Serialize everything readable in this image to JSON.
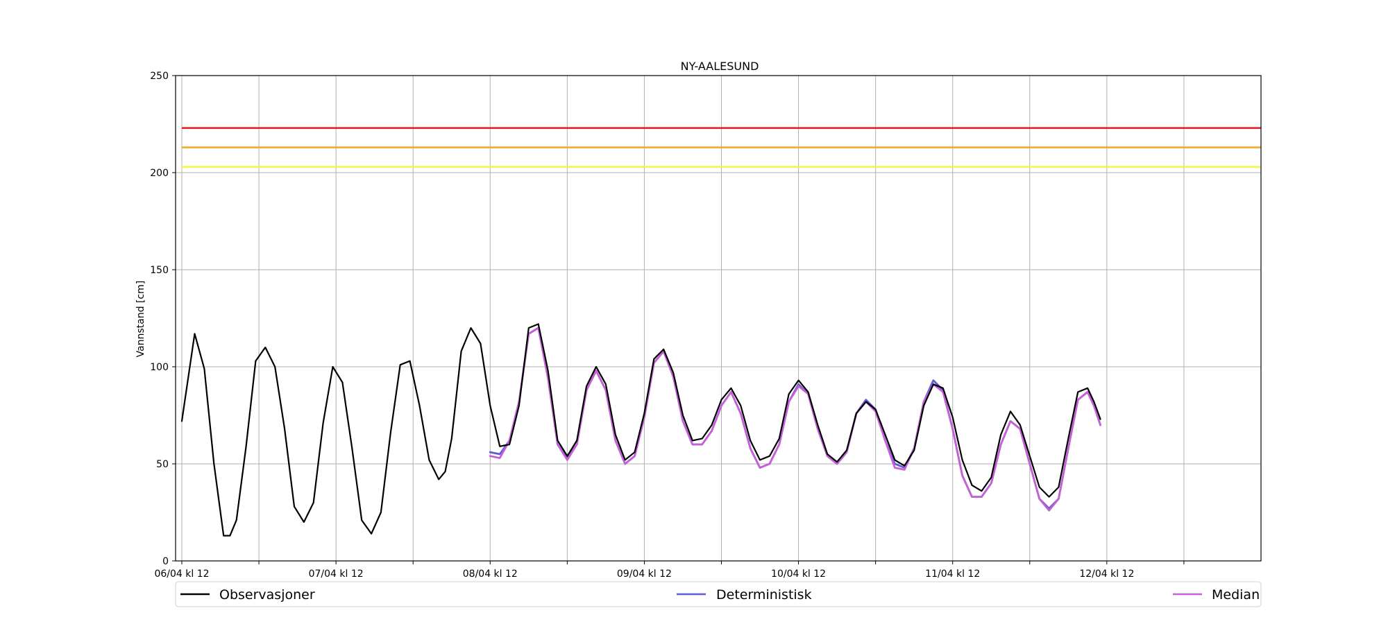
{
  "chart_data": {
    "type": "line",
    "title": "NY-AALESUND",
    "ylabel": "Vannstand [cm]",
    "xlabel": "",
    "ylim": [
      0,
      250
    ],
    "yticks": [
      0,
      50,
      100,
      150,
      200,
      250
    ],
    "x_unit": "hours since 06/04 00:00",
    "xlim": [
      12,
      180
    ],
    "xticks": [
      12,
      24,
      36,
      48,
      60,
      72,
      84,
      96,
      108,
      120,
      132,
      144,
      156,
      168
    ],
    "xtick_labels": [
      "06/04 kl 12",
      "",
      "07/04 kl 12",
      "",
      "08/04 kl 12",
      "",
      "09/04 kl 12",
      "",
      "10/04 kl 12",
      "",
      "11/04 kl 12",
      "",
      "12/04 kl 12",
      ""
    ],
    "grid": true,
    "thresholds": [
      {
        "value": 223,
        "color": "#e41a1c"
      },
      {
        "value": 213,
        "color": "#f5a623"
      },
      {
        "value": 203,
        "color": "#f5f542"
      }
    ],
    "series": [
      {
        "name": "Observasjoner",
        "color": "#000000",
        "points": [
          [
            12,
            72
          ],
          [
            14,
            117
          ],
          [
            15.5,
            99
          ],
          [
            17,
            50
          ],
          [
            18.5,
            13
          ],
          [
            19.5,
            13
          ],
          [
            20.5,
            21
          ],
          [
            22,
            59
          ],
          [
            23.5,
            103
          ],
          [
            25,
            110
          ],
          [
            26.5,
            100
          ],
          [
            28,
            68
          ],
          [
            29.5,
            28
          ],
          [
            31,
            20
          ],
          [
            32.5,
            30
          ],
          [
            34,
            71
          ],
          [
            35.5,
            100
          ],
          [
            37,
            92
          ],
          [
            38.5,
            58
          ],
          [
            40,
            21
          ],
          [
            41.5,
            14
          ],
          [
            43,
            25
          ],
          [
            44.5,
            66
          ],
          [
            46,
            101
          ],
          [
            47.5,
            103
          ],
          [
            49,
            80
          ],
          [
            50.5,
            52
          ],
          [
            52,
            42
          ],
          [
            53,
            46
          ],
          [
            54,
            63
          ],
          [
            55.5,
            108
          ],
          [
            57,
            120
          ],
          [
            58.5,
            112
          ],
          [
            60,
            80
          ],
          [
            61.5,
            59
          ],
          [
            63,
            60
          ],
          [
            64.5,
            80
          ],
          [
            66,
            120
          ],
          [
            67.5,
            122
          ],
          [
            69,
            98
          ],
          [
            70.5,
            62
          ],
          [
            72,
            54
          ],
          [
            73.5,
            62
          ],
          [
            75,
            90
          ],
          [
            76.5,
            100
          ],
          [
            78,
            91
          ],
          [
            79.5,
            65
          ],
          [
            81,
            52
          ],
          [
            82.5,
            56
          ],
          [
            84,
            76
          ],
          [
            85.5,
            104
          ],
          [
            87,
            109
          ],
          [
            88.5,
            97
          ],
          [
            90,
            75
          ],
          [
            91.5,
            62
          ],
          [
            93,
            63
          ],
          [
            94.5,
            70
          ],
          [
            96,
            83
          ],
          [
            97.5,
            89
          ],
          [
            99,
            80
          ],
          [
            100.5,
            62
          ],
          [
            102,
            52
          ],
          [
            103.5,
            54
          ],
          [
            105,
            63
          ],
          [
            106.5,
            86
          ],
          [
            108,
            93
          ],
          [
            109.5,
            87
          ],
          [
            111,
            70
          ],
          [
            112.5,
            55
          ],
          [
            114,
            51
          ],
          [
            115.5,
            57
          ],
          [
            117,
            76
          ],
          [
            118.5,
            82
          ],
          [
            120,
            78
          ],
          [
            121.5,
            65
          ],
          [
            123,
            52
          ],
          [
            124.5,
            49
          ],
          [
            126,
            57
          ],
          [
            127.5,
            80
          ],
          [
            129,
            91
          ],
          [
            130.5,
            89
          ],
          [
            132,
            74
          ],
          [
            133.5,
            52
          ],
          [
            135,
            39
          ],
          [
            136.5,
            36
          ],
          [
            138,
            43
          ],
          [
            139.5,
            65
          ],
          [
            141,
            77
          ],
          [
            142.5,
            70
          ],
          [
            144,
            54
          ],
          [
            145.5,
            38
          ],
          [
            147,
            33
          ],
          [
            148.5,
            38
          ],
          [
            150,
            63
          ],
          [
            151.5,
            87
          ],
          [
            153,
            89
          ],
          [
            154,
            82
          ],
          [
            155,
            73
          ]
        ]
      },
      {
        "name": "Deterministisk",
        "color": "#5c5ccf",
        "points": [
          [
            60,
            56
          ],
          [
            61.5,
            55
          ],
          [
            63,
            62
          ],
          [
            64.5,
            82
          ],
          [
            66,
            117
          ],
          [
            67.5,
            120
          ],
          [
            69,
            95
          ],
          [
            70.5,
            60
          ],
          [
            72,
            53
          ],
          [
            73.5,
            60
          ],
          [
            75,
            88
          ],
          [
            76.5,
            98
          ],
          [
            78,
            88
          ],
          [
            79.5,
            62
          ],
          [
            81,
            50
          ],
          [
            82.5,
            54
          ],
          [
            84,
            74
          ],
          [
            85.5,
            102
          ],
          [
            87,
            108
          ],
          [
            88.5,
            95
          ],
          [
            90,
            72
          ],
          [
            91.5,
            60
          ],
          [
            93,
            60
          ],
          [
            94.5,
            67
          ],
          [
            96,
            80
          ],
          [
            97.5,
            87
          ],
          [
            99,
            76
          ],
          [
            100.5,
            58
          ],
          [
            102,
            48
          ],
          [
            103.5,
            50
          ],
          [
            105,
            60
          ],
          [
            106.5,
            82
          ],
          [
            108,
            91
          ],
          [
            109.5,
            86
          ],
          [
            111,
            68
          ],
          [
            112.5,
            54
          ],
          [
            114,
            50
          ],
          [
            115.5,
            56
          ],
          [
            117,
            76
          ],
          [
            118.5,
            83
          ],
          [
            120,
            78
          ],
          [
            121.5,
            62
          ],
          [
            123,
            50
          ],
          [
            124.5,
            48
          ],
          [
            126,
            58
          ],
          [
            127.5,
            82
          ],
          [
            129,
            93
          ],
          [
            130.5,
            88
          ],
          [
            132,
            68
          ],
          [
            133.5,
            44
          ],
          [
            135,
            33
          ],
          [
            136.5,
            33
          ],
          [
            138,
            40
          ],
          [
            139.5,
            60
          ],
          [
            141,
            72
          ],
          [
            142.5,
            68
          ],
          [
            144,
            50
          ],
          [
            145.5,
            32
          ],
          [
            147,
            27
          ],
          [
            148.5,
            32
          ],
          [
            150,
            58
          ],
          [
            151.5,
            83
          ],
          [
            153,
            87
          ],
          [
            154,
            80
          ],
          [
            155,
            70
          ]
        ]
      },
      {
        "name": "Median",
        "color": "#c65fd8",
        "points": [
          [
            60,
            54
          ],
          [
            61.5,
            53
          ],
          [
            63,
            62
          ],
          [
            64.5,
            82
          ],
          [
            66,
            117
          ],
          [
            67.5,
            120
          ],
          [
            69,
            94
          ],
          [
            70.5,
            60
          ],
          [
            72,
            52
          ],
          [
            73.5,
            60
          ],
          [
            75,
            88
          ],
          [
            76.5,
            98
          ],
          [
            78,
            88
          ],
          [
            79.5,
            62
          ],
          [
            81,
            50
          ],
          [
            82.5,
            54
          ],
          [
            84,
            74
          ],
          [
            85.5,
            102
          ],
          [
            87,
            108
          ],
          [
            88.5,
            95
          ],
          [
            90,
            72
          ],
          [
            91.5,
            60
          ],
          [
            93,
            60
          ],
          [
            94.5,
            67
          ],
          [
            96,
            80
          ],
          [
            97.5,
            87
          ],
          [
            99,
            76
          ],
          [
            100.5,
            58
          ],
          [
            102,
            48
          ],
          [
            103.5,
            50
          ],
          [
            105,
            60
          ],
          [
            106.5,
            82
          ],
          [
            108,
            90
          ],
          [
            109.5,
            86
          ],
          [
            111,
            68
          ],
          [
            112.5,
            54
          ],
          [
            114,
            50
          ],
          [
            115.5,
            56
          ],
          [
            117,
            76
          ],
          [
            118.5,
            82
          ],
          [
            120,
            77
          ],
          [
            121.5,
            62
          ],
          [
            123,
            48
          ],
          [
            124.5,
            47
          ],
          [
            126,
            58
          ],
          [
            127.5,
            82
          ],
          [
            129,
            91
          ],
          [
            130.5,
            87
          ],
          [
            132,
            68
          ],
          [
            133.5,
            44
          ],
          [
            135,
            33
          ],
          [
            136.5,
            33
          ],
          [
            138,
            40
          ],
          [
            139.5,
            60
          ],
          [
            141,
            72
          ],
          [
            142.5,
            68
          ],
          [
            144,
            50
          ],
          [
            145.5,
            32
          ],
          [
            147,
            26
          ],
          [
            148.5,
            32
          ],
          [
            150,
            58
          ],
          [
            151.5,
            83
          ],
          [
            153,
            87
          ],
          [
            154,
            80
          ],
          [
            155,
            70
          ]
        ]
      }
    ],
    "legend": {
      "placement": "bottom",
      "entries": [
        {
          "label": "Observasjoner",
          "color": "#000000"
        },
        {
          "label": "Deterministisk",
          "color": "#5c5ccf"
        },
        {
          "label": "Median",
          "color": "#c65fd8"
        }
      ]
    }
  }
}
